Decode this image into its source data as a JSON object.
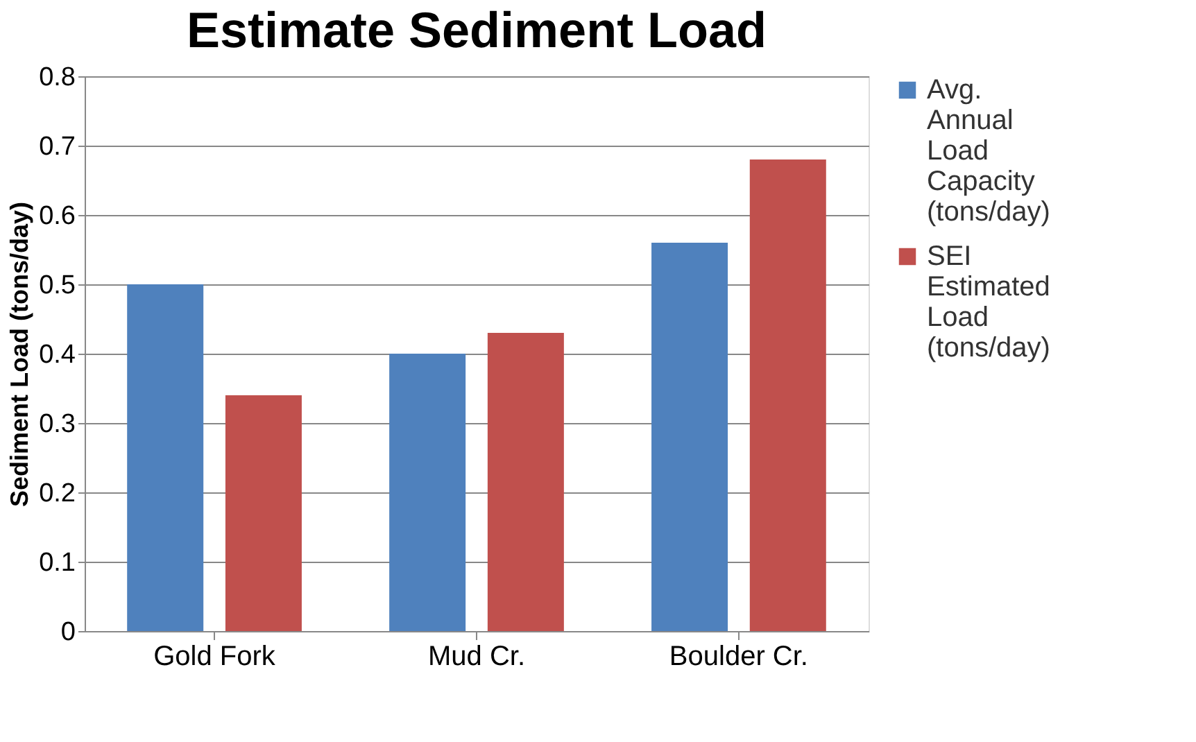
{
  "chart_data": {
    "type": "bar",
    "title": "Estimate Sediment Load",
    "ylabel": "Sediment Load (tons/day)",
    "categories": [
      "Gold Fork",
      "Mud Cr.",
      "Boulder Cr."
    ],
    "series": [
      {
        "name": "Avg. Annual Load Capacity (tons/day)",
        "color": "#4f81bd",
        "values": [
          0.5,
          0.4,
          0.56
        ]
      },
      {
        "name": "SEI Estimated Load (tons/day)",
        "color": "#c0504d",
        "values": [
          0.34,
          0.43,
          0.68
        ]
      }
    ],
    "ylim": [
      0,
      0.8
    ],
    "yticks": [
      {
        "value": 0,
        "label": "0"
      },
      0.1,
      0.2,
      0.3,
      0.4,
      0.5,
      0.6,
      0.7,
      0.8
    ],
    "grid": "y",
    "legend": "right"
  }
}
